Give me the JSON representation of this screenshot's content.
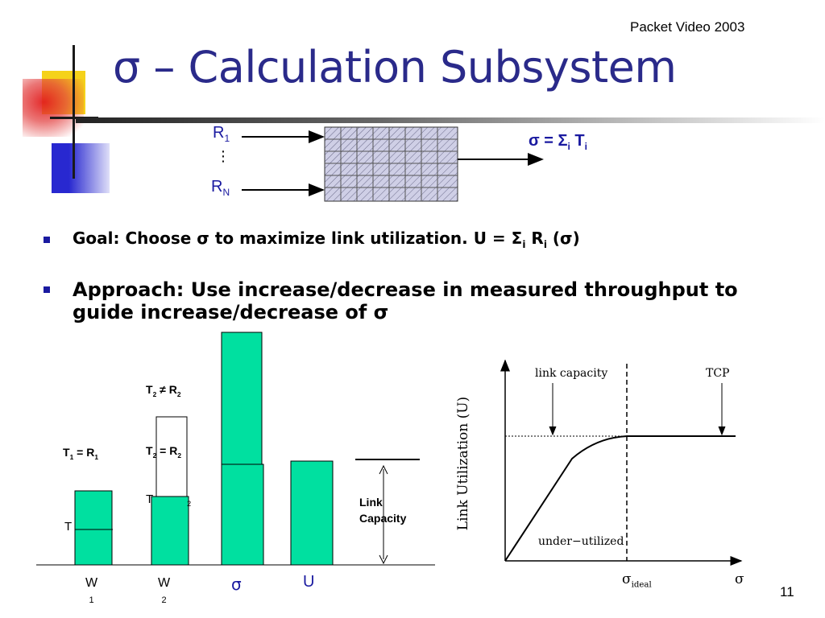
{
  "header": {
    "conference": "Packet Video 2003"
  },
  "title": "σ – Calculation Subsystem",
  "block_diagram": {
    "input_first": "R",
    "input_first_sub": "1",
    "input_dots": "⋮",
    "input_last": "R",
    "input_last_sub": "N",
    "output_main": "σ = Σ",
    "output_sub_i": "i",
    "output_T": " T",
    "output_sub_i2": "i"
  },
  "bullets": [
    {
      "text_a": "Goal: Choose σ to maximize link utilization. U = Σ",
      "sub_i": "i",
      "text_b": " R",
      "sub_i2": "i",
      "text_c": " (σ)"
    },
    {
      "text": "Approach: Use increase/decrease in measured throughput to guide increase/decrease of σ"
    }
  ],
  "bar_figure": {
    "label_t1": "T",
    "label_t1_sub": "1",
    "label_t1_rest": " = R",
    "label_t1_sub2": "1",
    "label_t2_neq": "T",
    "label_t2_neq_sub": "2",
    "label_t2_neq_rest": " ≠ R",
    "label_t2_neq_sub2": "2",
    "label_t2_eq": "T",
    "label_t2_eq_sub": "2",
    "label_t2_eq_rest": " = R",
    "label_t2_eq_sub2": "2",
    "overlap_t_label": "T",
    "overlap_t2_label": "T",
    "overlap_t2_sub": "2",
    "link_capacity_line1": "Link",
    "link_capacity_line2": "Capacity",
    "x_labels": [
      {
        "main": "W",
        "sub": "1"
      },
      {
        "main": "W",
        "sub": "2"
      },
      {
        "main": "σ",
        "sub": ""
      },
      {
        "main": "U",
        "sub": ""
      }
    ],
    "bar_color": "#00e0a0"
  },
  "utilization_chart": {
    "ylabel": "Link Utilization (U)",
    "xlabel": "σ",
    "x_ideal_label": "σ",
    "x_ideal_sub": "ideal",
    "annot_link_capacity": "link capacity",
    "annot_tcp": "TCP",
    "annot_under": "under−utilized"
  },
  "page_number": "11",
  "decor_colors": {
    "title": "#2a2a8a",
    "bullet": "#1a1aa0",
    "square_yellow": "#f5d21a",
    "square_blue": "#2828d0",
    "square_red": "#e02020"
  }
}
